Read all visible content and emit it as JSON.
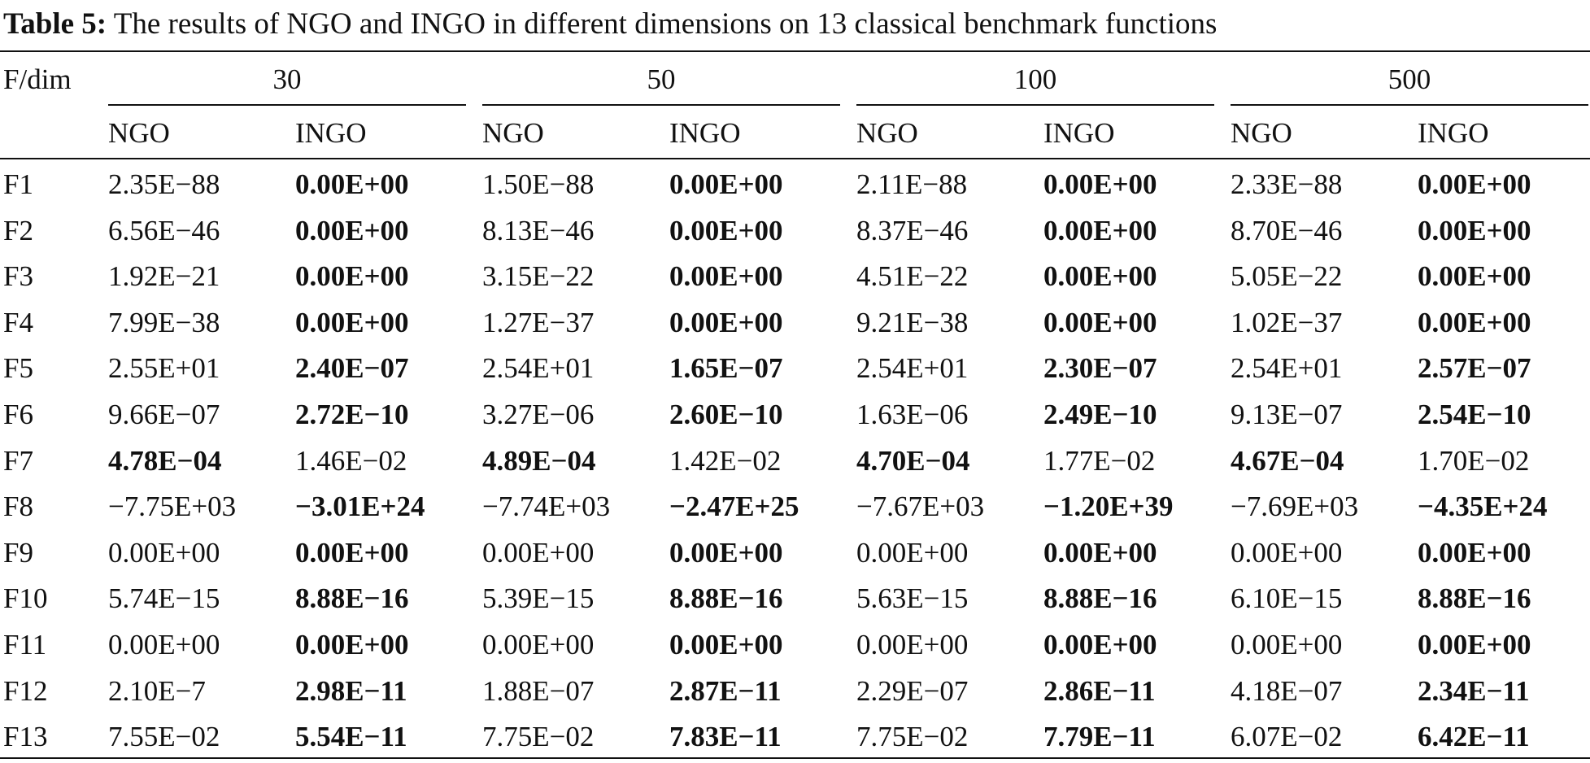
{
  "caption": {
    "label": "Table 5:",
    "text": " The results of NGO and INGO in different dimensions on 13 classical benchmark functions"
  },
  "table": {
    "corner_header": "F/dim",
    "dimensions": [
      "30",
      "50",
      "100",
      "500"
    ],
    "algorithms": [
      "NGO",
      "INGO"
    ],
    "rows": [
      {
        "f": "F1",
        "values": [
          "2.35E−88",
          "0.00E+00",
          "1.50E−88",
          "0.00E+00",
          "2.11E−88",
          "0.00E+00",
          "2.33E−88",
          "0.00E+00"
        ],
        "best": [
          1,
          3,
          5,
          7
        ]
      },
      {
        "f": "F2",
        "values": [
          "6.56E−46",
          "0.00E+00",
          "8.13E−46",
          "0.00E+00",
          "8.37E−46",
          "0.00E+00",
          "8.70E−46",
          "0.00E+00"
        ],
        "best": [
          1,
          3,
          5,
          7
        ]
      },
      {
        "f": "F3",
        "values": [
          "1.92E−21",
          "0.00E+00",
          "3.15E−22",
          "0.00E+00",
          "4.51E−22",
          "0.00E+00",
          "5.05E−22",
          "0.00E+00"
        ],
        "best": [
          1,
          3,
          5,
          7
        ]
      },
      {
        "f": "F4",
        "values": [
          "7.99E−38",
          "0.00E+00",
          "1.27E−37",
          "0.00E+00",
          "9.21E−38",
          "0.00E+00",
          "1.02E−37",
          "0.00E+00"
        ],
        "best": [
          1,
          3,
          5,
          7
        ]
      },
      {
        "f": "F5",
        "values": [
          "2.55E+01",
          "2.40E−07",
          "2.54E+01",
          "1.65E−07",
          "2.54E+01",
          "2.30E−07",
          "2.54E+01",
          "2.57E−07"
        ],
        "best": [
          1,
          3,
          5,
          7
        ]
      },
      {
        "f": "F6",
        "values": [
          "9.66E−07",
          "2.72E−10",
          "3.27E−06",
          "2.60E−10",
          "1.63E−06",
          "2.49E−10",
          "9.13E−07",
          "2.54E−10"
        ],
        "best": [
          1,
          3,
          5,
          7
        ]
      },
      {
        "f": "F7",
        "values": [
          "4.78E−04",
          "1.46E−02",
          "4.89E−04",
          "1.42E−02",
          "4.70E−04",
          "1.77E−02",
          "4.67E−04",
          "1.70E−02"
        ],
        "best": [
          0,
          2,
          4,
          6
        ]
      },
      {
        "f": "F8",
        "values": [
          "−7.75E+03",
          "−3.01E+24",
          "−7.74E+03",
          "−2.47E+25",
          "−7.67E+03",
          "−1.20E+39",
          "−7.69E+03",
          "−4.35E+24"
        ],
        "best": [
          1,
          3,
          5,
          7
        ]
      },
      {
        "f": "F9",
        "values": [
          "0.00E+00",
          "0.00E+00",
          "0.00E+00",
          "0.00E+00",
          "0.00E+00",
          "0.00E+00",
          "0.00E+00",
          "0.00E+00"
        ],
        "best": [
          1,
          3,
          5,
          7
        ]
      },
      {
        "f": "F10",
        "values": [
          "5.74E−15",
          "8.88E−16",
          "5.39E−15",
          "8.88E−16",
          "5.63E−15",
          "8.88E−16",
          "6.10E−15",
          "8.88E−16"
        ],
        "best": [
          1,
          3,
          5,
          7
        ]
      },
      {
        "f": "F11",
        "values": [
          "0.00E+00",
          "0.00E+00",
          "0.00E+00",
          "0.00E+00",
          "0.00E+00",
          "0.00E+00",
          "0.00E+00",
          "0.00E+00"
        ],
        "best": [
          1,
          3,
          5,
          7
        ]
      },
      {
        "f": "F12",
        "values": [
          "2.10E−7",
          "2.98E−11",
          "1.88E−07",
          "2.87E−11",
          "2.29E−07",
          "2.86E−11",
          "4.18E−07",
          "2.34E−11"
        ],
        "best": [
          1,
          3,
          5,
          7
        ]
      },
      {
        "f": "F13",
        "values": [
          "7.55E−02",
          "5.54E−11",
          "7.75E−02",
          "7.83E−11",
          "7.75E−02",
          "7.79E−11",
          "6.07E−02",
          "6.42E−11"
        ],
        "best": [
          1,
          3,
          5,
          7
        ]
      }
    ]
  }
}
